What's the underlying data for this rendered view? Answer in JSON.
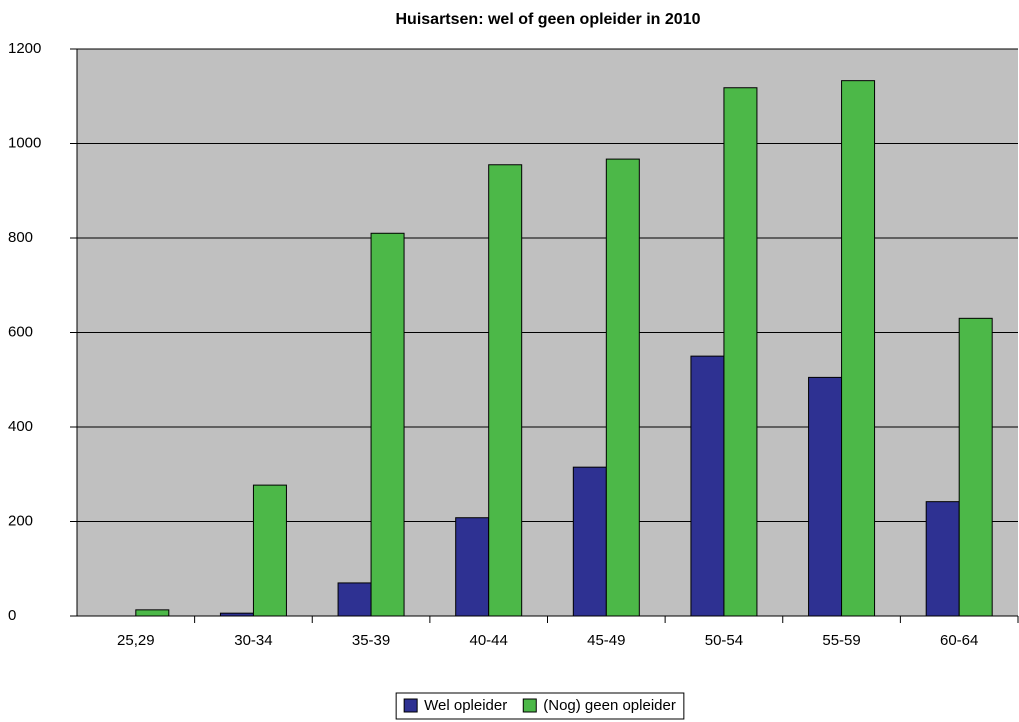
{
  "chart_data": {
    "type": "bar",
    "title": "Huisartsen: wel of geen opleider in 2010",
    "categories": [
      "25,29",
      "30-34",
      "35-39",
      "40-44",
      "45-49",
      "50-54",
      "55-59",
      "60-64"
    ],
    "series": [
      {
        "name": "Wel opleider",
        "color": "#2e3192",
        "values": [
          0,
          6,
          70,
          208,
          315,
          550,
          505,
          242
        ]
      },
      {
        "name": "(Nog) geen opleider",
        "color": "#4cb848",
        "values": [
          13,
          277,
          810,
          955,
          967,
          1118,
          1133,
          630
        ]
      }
    ],
    "ylim": [
      0,
      1200
    ],
    "yticks": [
      0,
      200,
      400,
      600,
      800,
      1000,
      1200
    ],
    "grid": true,
    "legend": "bottom"
  }
}
